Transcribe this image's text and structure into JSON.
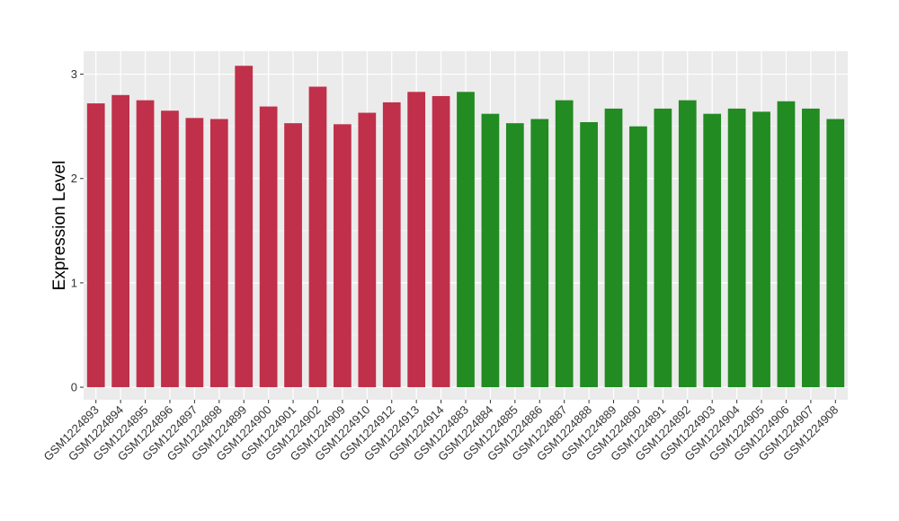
{
  "chart_data": {
    "type": "bar",
    "title": "",
    "xlabel": "",
    "ylabel": "Expression Level",
    "ylim": [
      -0.12,
      3.22
    ],
    "yticks": [
      0,
      1,
      2,
      3
    ],
    "grid": true,
    "legend": "none",
    "colors": {
      "panel": "#EBEBEB",
      "grid_major": "#FFFFFF",
      "grid_minor": "#F5F5F5",
      "tick_text": "#333333"
    },
    "categories": [
      "GSM1224893",
      "GSM1224894",
      "GSM1224895",
      "GSM1224896",
      "GSM1224897",
      "GSM1224898",
      "GSM1224899",
      "GSM1224900",
      "GSM1224901",
      "GSM1224902",
      "GSM1224909",
      "GSM1224910",
      "GSM1224912",
      "GSM1224913",
      "GSM1224914",
      "GSM1224883",
      "GSM1224884",
      "GSM1224885",
      "GSM1224886",
      "GSM1224887",
      "GSM1224888",
      "GSM1224889",
      "GSM1224890",
      "GSM1224891",
      "GSM1224892",
      "GSM1224903",
      "GSM1224904",
      "GSM1224905",
      "GSM1224906",
      "GSM1224907",
      "GSM1224908"
    ],
    "values": [
      2.72,
      2.8,
      2.75,
      2.65,
      2.58,
      2.57,
      3.08,
      2.69,
      2.53,
      2.88,
      2.52,
      2.63,
      2.73,
      2.83,
      2.79,
      2.83,
      2.62,
      2.53,
      2.57,
      2.75,
      2.54,
      2.67,
      2.5,
      2.67,
      2.75,
      2.62,
      2.67,
      2.64,
      2.74,
      2.67,
      2.57
    ],
    "bar_colors": [
      "#C0304A",
      "#C0304A",
      "#C0304A",
      "#C0304A",
      "#C0304A",
      "#C0304A",
      "#C0304A",
      "#C0304A",
      "#C0304A",
      "#C0304A",
      "#C0304A",
      "#C0304A",
      "#C0304A",
      "#C0304A",
      "#C0304A",
      "#228B22",
      "#228B22",
      "#228B22",
      "#228B22",
      "#228B22",
      "#228B22",
      "#228B22",
      "#228B22",
      "#228B22",
      "#228B22",
      "#228B22",
      "#228B22",
      "#228B22",
      "#228B22",
      "#228B22",
      "#228B22"
    ]
  }
}
